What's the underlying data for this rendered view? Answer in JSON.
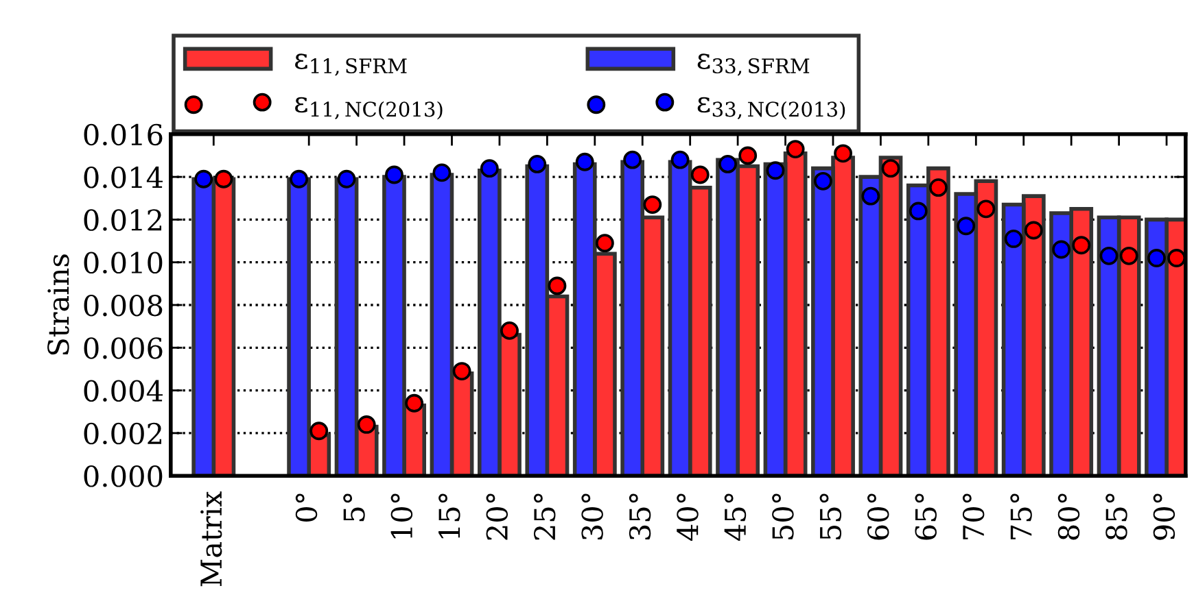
{
  "chart_data": {
    "type": "bar",
    "ylabel": "Strains",
    "categories": [
      "Matrix",
      null,
      "0°",
      "5°",
      "10°",
      "15°",
      "20°",
      "25°",
      "30°",
      "35°",
      "40°",
      "45°",
      "50°",
      "55°",
      "60°",
      "65°",
      "70°",
      "75°",
      "80°",
      "85°",
      "90°"
    ],
    "series": [
      {
        "name": "ε$_{11,SFRM}$",
        "color": "#ff3333",
        "values": [
          0.0139,
          null,
          0.0019,
          0.0023,
          0.0033,
          0.0048,
          0.0066,
          0.0084,
          0.0104,
          0.0121,
          0.0135,
          0.0145,
          0.0151,
          0.0149,
          0.0149,
          0.0144,
          0.0138,
          0.0131,
          0.0125,
          0.0121,
          0.012
        ]
      },
      {
        "name": "ε$_{33,SFRM}$",
        "color": "#3333ff",
        "values": [
          0.0139,
          null,
          0.0139,
          0.0139,
          0.014,
          0.0141,
          0.0143,
          0.0145,
          0.0146,
          0.0147,
          0.0147,
          0.0148,
          0.0146,
          0.0144,
          0.014,
          0.0136,
          0.0132,
          0.0127,
          0.0123,
          0.0121,
          0.012
        ]
      },
      {
        "name": "ε$_{11,NC(2013)}$",
        "type": "scatter",
        "marker": "circle",
        "color": "#ff0000",
        "values": [
          0.0139,
          null,
          0.0021,
          0.0024,
          0.0034,
          0.0049,
          0.0068,
          0.0089,
          0.0109,
          0.0127,
          0.0141,
          0.015,
          0.0153,
          0.0151,
          0.0144,
          0.0135,
          0.0125,
          0.0115,
          0.0108,
          0.0103,
          0.0102
        ]
      },
      {
        "name": "ε$_{33,NC(2013)}$",
        "type": "scatter",
        "marker": "circle",
        "color": "#0000ff",
        "values": [
          0.0139,
          null,
          0.0139,
          0.0139,
          0.0141,
          0.0142,
          0.0144,
          0.0146,
          0.0147,
          0.0148,
          0.0148,
          0.0146,
          0.0143,
          0.0138,
          0.0131,
          0.0124,
          0.0117,
          0.0111,
          0.0106,
          0.0103,
          0.0102
        ]
      }
    ],
    "ylim": [
      0,
      0.016
    ],
    "yticks": [
      {
        "value": 0,
        "label": "0.000"
      },
      {
        "value": 0.002,
        "label": "0.002"
      },
      {
        "value": 0.004,
        "label": "0.004"
      },
      {
        "value": 0.006,
        "label": "0.006"
      },
      {
        "value": 0.008,
        "label": "0.008"
      },
      {
        "value": 0.01,
        "label": "0.010"
      },
      {
        "value": 0.012,
        "label": "0.012"
      },
      {
        "value": 0.014,
        "label": "0.014"
      },
      {
        "value": 0.016,
        "label": "0.016"
      }
    ],
    "grid": "y",
    "legend": "top"
  }
}
